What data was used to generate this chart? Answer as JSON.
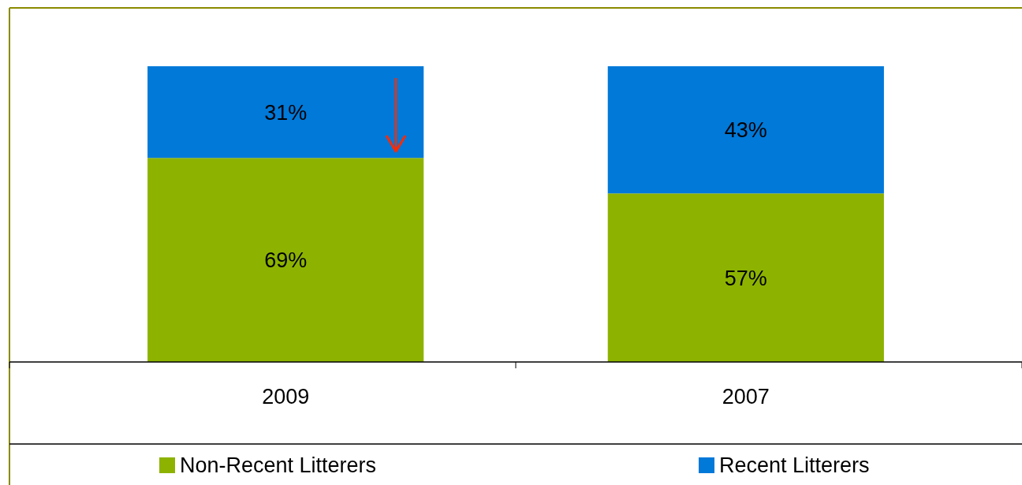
{
  "chart_data": {
    "type": "bar",
    "stacked": true,
    "categories": [
      "2009",
      "2007"
    ],
    "series": [
      {
        "name": "Non-Recent Litterers",
        "color": "#8db300",
        "values": [
          69,
          57
        ],
        "value_labels": [
          "69%",
          "57%"
        ]
      },
      {
        "name": "Recent Litterers",
        "color": "#0079d9",
        "values": [
          31,
          43
        ],
        "value_labels": [
          "31%",
          "43%"
        ]
      }
    ],
    "legend": "bottom"
  }
}
